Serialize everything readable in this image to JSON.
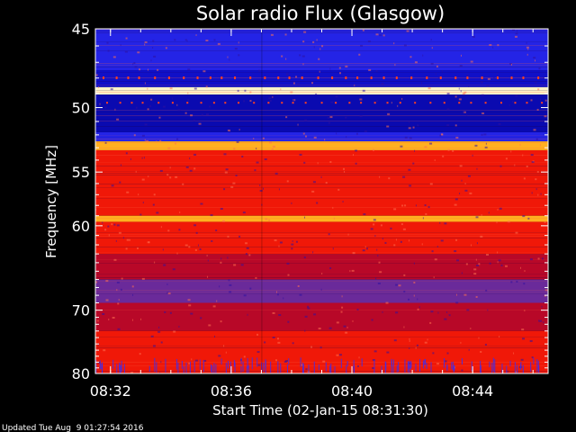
{
  "chart_data": {
    "type": "heatmap",
    "title": "Solar radio Flux (Glasgow)",
    "xlabel": "Start Time (02-Jan-15 08:31:30)",
    "ylabel": "Frequency [MHz]",
    "x_ticks": [
      "08:32",
      "08:36",
      "08:40",
      "08:44"
    ],
    "y_ticks": [
      "45",
      "50",
      "55",
      "60",
      "70",
      "80"
    ],
    "y_range_mhz": [
      45,
      80
    ],
    "y_scale": "reciprocal",
    "x_range": [
      "08:31:30",
      "08:46:30"
    ],
    "colormap": "blue-red-white intensity",
    "bands": [
      {
        "from_mhz": 45,
        "to_mhz": 47.5,
        "level": "medium-blue"
      },
      {
        "from_mhz": 47.5,
        "to_mhz": 48.6,
        "level": "blue"
      },
      {
        "from_mhz": 48.6,
        "to_mhz": 49.1,
        "level": "very-high"
      },
      {
        "from_mhz": 49.1,
        "to_mhz": 51.8,
        "level": "dark-blue"
      },
      {
        "from_mhz": 51.8,
        "to_mhz": 52.5,
        "level": "medium-blue"
      },
      {
        "from_mhz": 52.5,
        "to_mhz": 53.2,
        "level": "high"
      },
      {
        "from_mhz": 53.2,
        "to_mhz": 59,
        "level": "red"
      },
      {
        "from_mhz": 59,
        "to_mhz": 59.6,
        "level": "high"
      },
      {
        "from_mhz": 59.6,
        "to_mhz": 63,
        "level": "red"
      },
      {
        "from_mhz": 63,
        "to_mhz": 66,
        "level": "dark-red"
      },
      {
        "from_mhz": 66,
        "to_mhz": 69,
        "level": "purple"
      },
      {
        "from_mhz": 69,
        "to_mhz": 73,
        "level": "dark-red"
      },
      {
        "from_mhz": 73,
        "to_mhz": 80,
        "level": "red"
      }
    ]
  },
  "footer": {
    "updated": "Updated Tue Aug  9 01:27:54 2016"
  },
  "colors": {
    "very-high": "#fff4c8",
    "high": "#ffb020",
    "red": "#f01808",
    "dark-red": "#b80828",
    "purple": "#6a2a9a",
    "medium-blue": "#2424e6",
    "blue": "#1010c8",
    "dark-blue": "#0a0ab0"
  }
}
